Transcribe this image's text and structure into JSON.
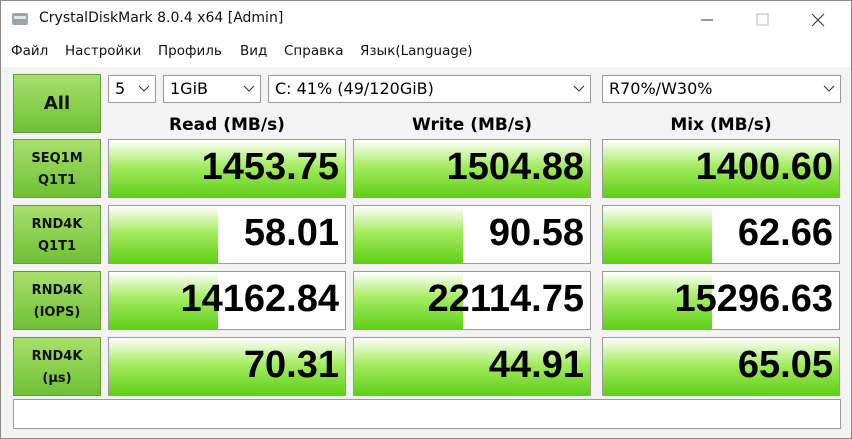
{
  "window": {
    "title": "CrystalDiskMark 8.0.4 x64 [Admin]"
  },
  "menu": [
    "Файл",
    "Настройки",
    "Профиль",
    "Вид",
    "Справка",
    "Язык(Language)"
  ],
  "controls": {
    "run_all": "All",
    "count": "5",
    "size": "1GiB",
    "drive": "C: 41% (49/120GiB)",
    "mix": "R70%/W30%"
  },
  "table": {
    "headers": [
      "Read (MB/s)",
      "Write (MB/s)",
      "Mix (MB/s)"
    ],
    "rows": [
      {
        "label": [
          "SEQ1M",
          "Q1T1"
        ],
        "values": [
          "1453.75",
          "1504.88",
          "1400.60"
        ]
      },
      {
        "label": [
          "RND4K",
          "Q1T1"
        ],
        "values": [
          "58.01",
          "90.58",
          "62.66"
        ]
      },
      {
        "label": [
          "RND4K",
          "(IOPS)"
        ],
        "values": [
          "14162.84",
          "22114.75",
          "15296.63"
        ]
      },
      {
        "label": [
          "RND4K",
          "(μs)"
        ],
        "values": [
          "70.31",
          "44.91",
          "65.05"
        ]
      }
    ]
  }
}
